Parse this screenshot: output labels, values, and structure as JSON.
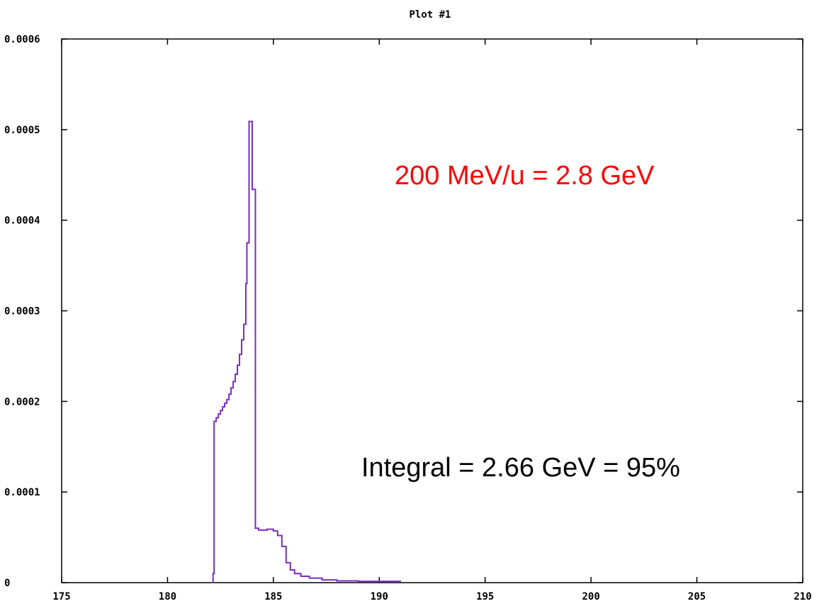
{
  "chart_data": {
    "type": "line",
    "title": "Plot #1",
    "xlabel": "",
    "ylabel": "",
    "xlim": [
      175,
      210
    ],
    "ylim": [
      0,
      0.0006
    ],
    "x_ticks": [
      175,
      180,
      185,
      190,
      195,
      200,
      205,
      210
    ],
    "x_tick_labels": [
      "175",
      "180",
      "185",
      "190",
      "195",
      "200",
      "205",
      "210"
    ],
    "y_ticks": [
      0,
      0.0001,
      0.0002,
      0.0003,
      0.0004,
      0.0005,
      0.0006
    ],
    "y_tick_labels": [
      "0",
      "0.0001",
      "0.0002",
      "0.0003",
      "0.0004",
      "0.0005",
      "0.0006"
    ],
    "grid": false,
    "series": [
      {
        "color": "#7b2cbf",
        "step": true,
        "points": [
          [
            182.1,
            0
          ],
          [
            182.15,
            1e-05
          ],
          [
            182.2,
            0.000178
          ],
          [
            182.3,
            0.000182
          ],
          [
            182.4,
            0.000186
          ],
          [
            182.5,
            0.00019
          ],
          [
            182.6,
            0.000194
          ],
          [
            182.7,
            0.000198
          ],
          [
            182.8,
            0.000202
          ],
          [
            182.9,
            0.000208
          ],
          [
            183.0,
            0.000215
          ],
          [
            183.1,
            0.000222
          ],
          [
            183.2,
            0.00023
          ],
          [
            183.3,
            0.00024
          ],
          [
            183.4,
            0.000252
          ],
          [
            183.5,
            0.000268
          ],
          [
            183.6,
            0.000285
          ],
          [
            183.7,
            0.00033
          ],
          [
            183.75,
            0.000375
          ],
          [
            183.85,
            0.000509
          ],
          [
            184.0,
            0.000434
          ],
          [
            184.15,
            6e-05
          ],
          [
            184.3,
            5.8e-05
          ],
          [
            184.7,
            5.9e-05
          ],
          [
            185.0,
            5.7e-05
          ],
          [
            185.2,
            5.2e-05
          ],
          [
            185.4,
            4e-05
          ],
          [
            185.6,
            2.2e-05
          ],
          [
            185.8,
            1.4e-05
          ],
          [
            186.0,
            1e-05
          ],
          [
            186.3,
            7e-06
          ],
          [
            186.7,
            5e-06
          ],
          [
            187.3,
            3e-06
          ],
          [
            188.0,
            2e-06
          ],
          [
            189.0,
            1.5e-06
          ],
          [
            191.0,
            1e-06
          ]
        ]
      }
    ],
    "annotations": [
      {
        "text": "200 MeV/u  = 2.8 GeV",
        "color": "#ff0000"
      },
      {
        "text": "Integral = 2.66 GeV = 95%",
        "color": "#000000"
      }
    ]
  }
}
